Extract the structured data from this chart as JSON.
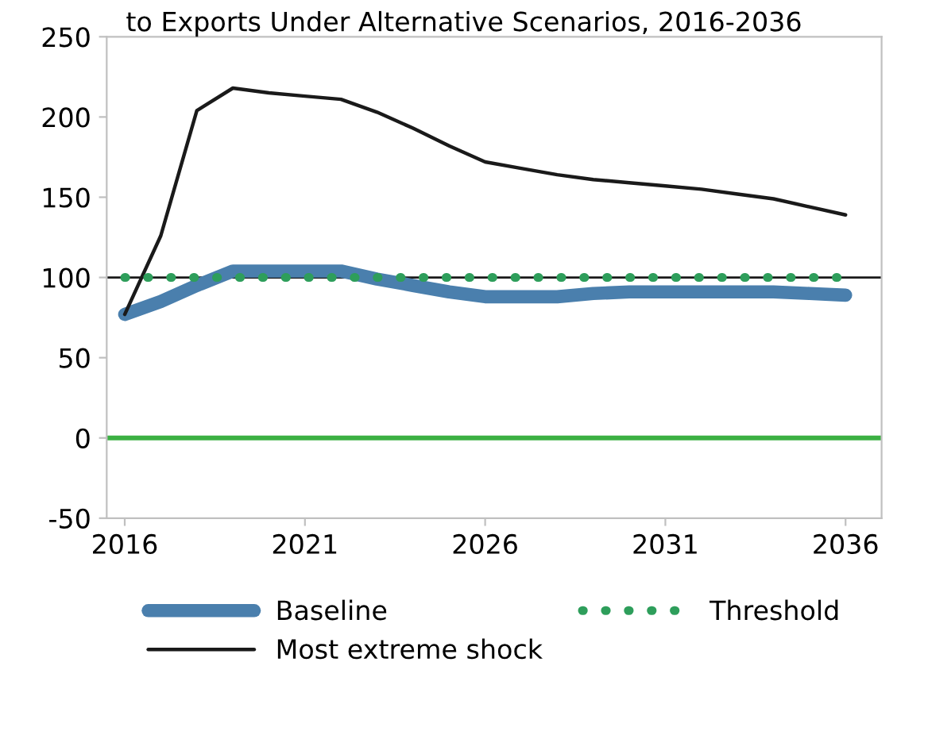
{
  "chart_data": {
    "type": "line",
    "title": "to Exports Under Alternative Scenarios, 2016-2036",
    "x": [
      2016,
      2017,
      2018,
      2019,
      2020,
      2021,
      2022,
      2023,
      2024,
      2025,
      2026,
      2027,
      2028,
      2029,
      2030,
      2031,
      2032,
      2033,
      2034,
      2035,
      2036
    ],
    "series": [
      {
        "name": "Baseline",
        "color": "#4a7fad",
        "line_style": "solid",
        "values": [
          77,
          85,
          95,
          104,
          104,
          104,
          104,
          99,
          95,
          91,
          88,
          88,
          88,
          90,
          91,
          91,
          91,
          91,
          91,
          90,
          89
        ]
      },
      {
        "name": "Most extreme shock",
        "color": "#1a1a1a",
        "line_style": "solid",
        "values": [
          77,
          126,
          204,
          218,
          215,
          213,
          211,
          203,
          193,
          182,
          172,
          168,
          164,
          161,
          159,
          157,
          155,
          152,
          149,
          144,
          139
        ]
      },
      {
        "name": "Threshold",
        "color": "#2e9e5b",
        "line_style": "dotted",
        "values": [
          100,
          100,
          100,
          100,
          100,
          100,
          100,
          100,
          100,
          100,
          100,
          100,
          100,
          100,
          100,
          100,
          100,
          100,
          100,
          100,
          100
        ]
      }
    ],
    "ref_lines": [
      {
        "axis": "y",
        "value": 0,
        "color": "#3cb043",
        "line_style": "solid"
      },
      {
        "axis": "y",
        "value": 100,
        "color": "#1a1a1a",
        "line_style": "solid"
      }
    ],
    "xlim": [
      2015.5,
      2037
    ],
    "xticks": [
      2016,
      2021,
      2026,
      2031,
      2036
    ],
    "ylim": [
      -50,
      250
    ],
    "yticks": [
      -50,
      0,
      50,
      100,
      150,
      200,
      250
    ],
    "grid": false,
    "legend": "bottom"
  }
}
